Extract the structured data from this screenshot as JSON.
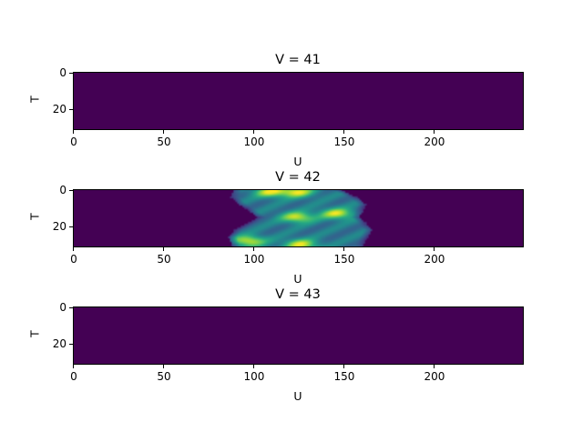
{
  "chart_data": [
    {
      "type": "heatmap",
      "title": "V = 41",
      "xlabel": "U",
      "ylabel": "T",
      "shape": [
        32,
        250
      ],
      "xlim": [
        -0.5,
        249.5
      ],
      "ylim": [
        31.5,
        -0.5
      ],
      "xticks": [
        "0",
        "50",
        "100",
        "150",
        "200"
      ],
      "yticks": [
        "0",
        "20"
      ],
      "colormap": "viridis",
      "background_color": "#440154",
      "values": "all zero"
    },
    {
      "type": "heatmap",
      "title": "V = 42",
      "xlabel": "U",
      "ylabel": "T",
      "shape": [
        32,
        250
      ],
      "xlim": [
        -0.5,
        249.5
      ],
      "ylim": [
        31.5,
        -0.5
      ],
      "xticks": [
        "0",
        "50",
        "100",
        "150",
        "200"
      ],
      "yticks": [
        "0",
        "20"
      ],
      "colormap": "viridis",
      "background_color": "#440154",
      "nonzero_row_extent": [
        {
          "T": 0,
          "u_start": 89,
          "u_end": 148
        },
        {
          "T": 4,
          "u_start": 87,
          "u_end": 157
        },
        {
          "T": 8,
          "u_start": 92,
          "u_end": 162
        },
        {
          "T": 12,
          "u_start": 98,
          "u_end": 160
        },
        {
          "T": 15,
          "u_start": 102,
          "u_end": 158
        },
        {
          "T": 18,
          "u_start": 97,
          "u_end": 162
        },
        {
          "T": 22,
          "u_start": 89,
          "u_end": 165
        },
        {
          "T": 26,
          "u_start": 86,
          "u_end": 163
        },
        {
          "T": 31,
          "u_start": 88,
          "u_end": 160
        }
      ],
      "peaks": [
        {
          "U": 124,
          "T": 1
        },
        {
          "U": 109,
          "T": 1
        },
        {
          "U": 124,
          "T": 15
        },
        {
          "U": 146,
          "T": 13
        },
        {
          "U": 97,
          "T": 28
        },
        {
          "U": 126,
          "T": 30
        }
      ]
    },
    {
      "type": "heatmap",
      "title": "V = 43",
      "xlabel": "U",
      "ylabel": "T",
      "shape": [
        32,
        250
      ],
      "xlim": [
        -0.5,
        249.5
      ],
      "ylim": [
        31.5,
        -0.5
      ],
      "xticks": [
        "0",
        "50",
        "100",
        "150",
        "200"
      ],
      "yticks": [
        "0",
        "20"
      ],
      "colormap": "viridis",
      "background_color": "#440154",
      "values": "all zero"
    }
  ]
}
